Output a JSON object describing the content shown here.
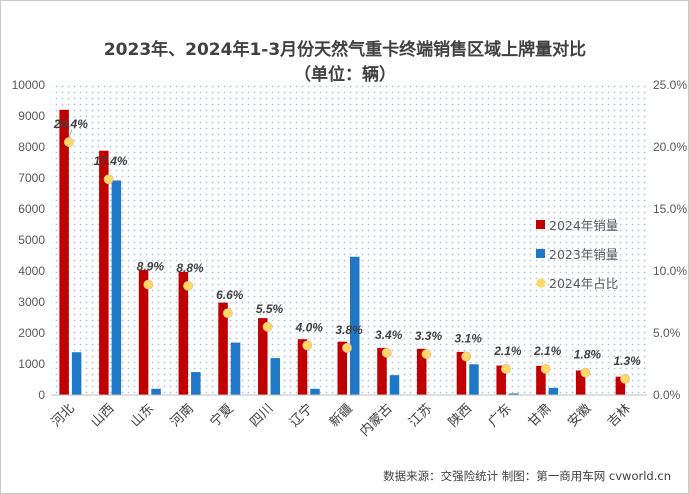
{
  "chart_data": {
    "type": "bar",
    "title": "2023年、2024年1-3月份天然气重卡终端销售区域上牌量对比",
    "subtitle": "（单位：辆）",
    "categories": [
      "河北",
      "山西",
      "山东",
      "河南",
      "宁夏",
      "四川",
      "辽宁",
      "新疆",
      "内蒙古",
      "江苏",
      "陕西",
      "广东",
      "甘肃",
      "安徽",
      "吉林"
    ],
    "series": [
      {
        "name": "2024年销量",
        "type": "bar",
        "axis": "left",
        "color": "#c00000",
        "values": [
          9200,
          7880,
          4030,
          3970,
          2980,
          2480,
          1800,
          1720,
          1520,
          1490,
          1390,
          950,
          940,
          790,
          590
        ]
      },
      {
        "name": "2023年销量",
        "type": "bar",
        "axis": "left",
        "color": "#1f77c8",
        "values": [
          1380,
          6920,
          200,
          740,
          1690,
          1190,
          200,
          4460,
          640,
          0,
          990,
          50,
          230,
          0,
          0
        ]
      },
      {
        "name": "2024年占比",
        "type": "scatter",
        "axis": "right",
        "color": "#ffd966",
        "values": [
          20.4,
          17.4,
          8.9,
          8.8,
          6.6,
          5.5,
          4.0,
          3.8,
          3.4,
          3.3,
          3.1,
          2.1,
          2.1,
          1.8,
          1.3
        ],
        "labels": [
          "20.4%",
          "17.4%",
          "8.9%",
          "8.8%",
          "6.6%",
          "5.5%",
          "4.0%",
          "3.8%",
          "3.4%",
          "3.3%",
          "3.1%",
          "2.1%",
          "2.1%",
          "1.8%",
          "1.3%"
        ]
      }
    ],
    "ylim": [
      0,
      10000
    ],
    "yticks": [
      "0",
      "1000",
      "2000",
      "3000",
      "4000",
      "5000",
      "6000",
      "7000",
      "8000",
      "9000",
      "10000"
    ],
    "y2lim": [
      0,
      25
    ],
    "y2ticks": [
      "0.0%",
      "5.0%",
      "10.0%",
      "15.0%",
      "20.0%",
      "25.0%"
    ],
    "legend_position": "right",
    "grid": false,
    "background_pattern": "dotted"
  },
  "footer": "数据来源：交强险统计  制图：第一商用车网 cvworld.cn"
}
